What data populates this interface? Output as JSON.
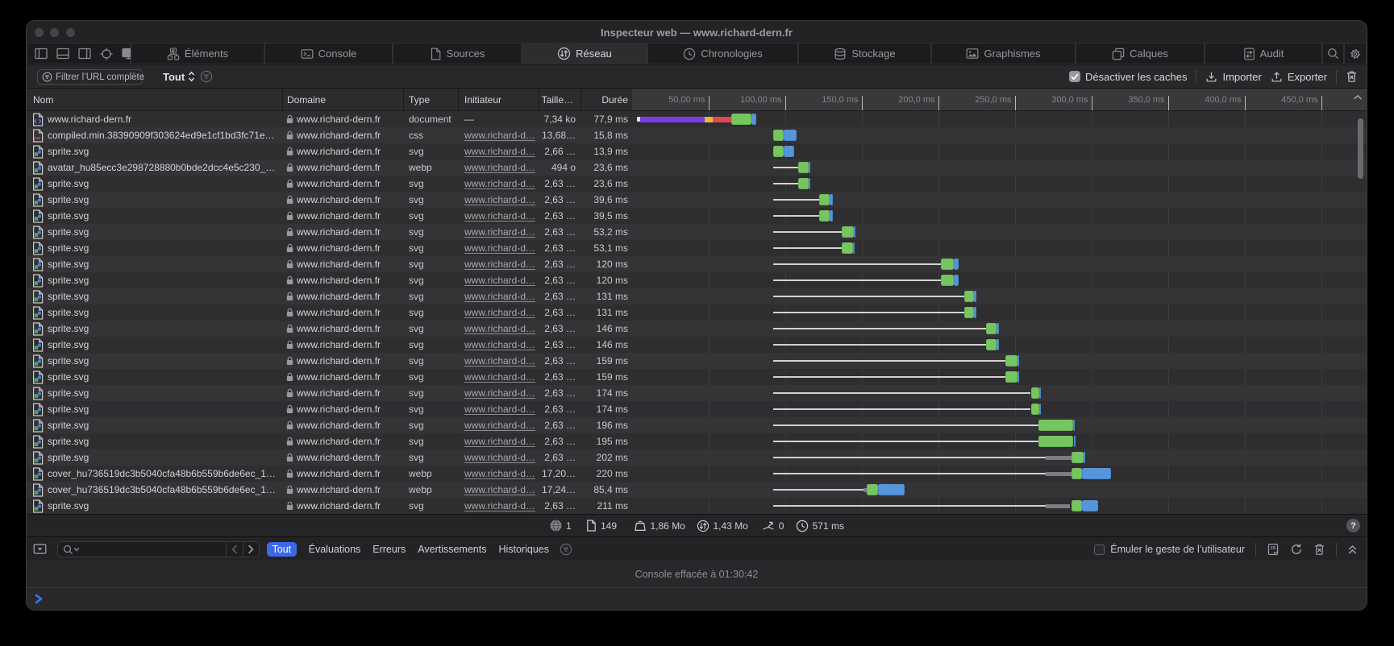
{
  "window": {
    "title": "Inspecteur web — www.richard-dern.fr",
    "traffic_lights": [
      "close",
      "minimize",
      "zoom"
    ]
  },
  "tabbar": {
    "view_mode_icons": [
      "panel-left-icon",
      "panel-bottom-icon",
      "panel-right-icon",
      "element-picker-icon",
      "device-icon"
    ],
    "tabs": [
      {
        "id": "elements",
        "icon": "elements-icon",
        "label": "Éléments",
        "selected": false
      },
      {
        "id": "console",
        "icon": "console-icon",
        "label": "Console",
        "selected": false
      },
      {
        "id": "sources",
        "icon": "sources-icon",
        "label": "Sources",
        "selected": false
      },
      {
        "id": "network",
        "icon": "network-icon",
        "label": "Réseau",
        "selected": true
      },
      {
        "id": "timelines",
        "icon": "clock-icon",
        "label": "Chronologies",
        "selected": false
      },
      {
        "id": "storage",
        "icon": "database-icon",
        "label": "Stockage",
        "selected": false
      },
      {
        "id": "graphics",
        "icon": "image-icon",
        "label": "Graphismes",
        "selected": false
      },
      {
        "id": "layers",
        "icon": "layers-icon",
        "label": "Calques",
        "selected": false
      },
      {
        "id": "audit",
        "icon": "audit-icon",
        "label": "Audit",
        "selected": false
      }
    ],
    "search_icon": "search-icon",
    "settings_icon": "gear-icon"
  },
  "filterbar": {
    "filter_button_label": "Filtrer l’URL complète",
    "scope_select_value": "Tout",
    "scope_filter_icon": "filter-circle-icon",
    "disable_caches_label": "Désactiver les caches",
    "disable_caches_checked": true,
    "import_label": "Importer",
    "export_label": "Exporter",
    "clear_icon": "trash-icon"
  },
  "table": {
    "columns": {
      "name": "Nom",
      "domain": "Domaine",
      "type": "Type",
      "initiator": "Initiateur",
      "size": "Taille…",
      "duration": "Durée"
    },
    "timeline_ticks": [
      "50,00 ms",
      "100,00 ms",
      "150,0 ms",
      "200,0 ms",
      "250,0 ms",
      "300,0 ms",
      "350,0 ms",
      "400,0 ms",
      "450,0 ms"
    ],
    "rows": [
      {
        "name": "www.richard-dern.fr",
        "icon": "document",
        "domain": "www.richard-dern.fr",
        "type": "document",
        "initiator": "—",
        "initiator_link": false,
        "size": "7,34 ko",
        "duration": "77,9 ms",
        "wf": [
          [
            "tick",
            3.4,
            5.6
          ],
          [
            "dns",
            5.6,
            47.6
          ],
          [
            "connect",
            47.6,
            52.9
          ],
          [
            "secure",
            52.9,
            65.0
          ],
          [
            "request",
            65.0,
            78.2
          ],
          [
            "response",
            78.2,
            81.3
          ]
        ]
      },
      {
        "name": "compiled.min.38390909f303624ed9e1cf1bd3fc71e…",
        "icon": "css",
        "domain": "www.richard-dern.fr",
        "type": "css",
        "initiator": "www.richard-d…",
        "initiator_link": true,
        "size": "13,68…",
        "duration": "15,8 ms",
        "wf": [
          [
            "request",
            92.6,
            99.2
          ],
          [
            "response",
            99.2,
            107.6
          ]
        ]
      },
      {
        "name": "sprite.svg",
        "icon": "image",
        "domain": "www.richard-dern.fr",
        "type": "svg",
        "initiator": "www.richard-d…",
        "initiator_link": true,
        "size": "2,66 …",
        "duration": "13,9 ms",
        "wf": [
          [
            "request",
            92.6,
            99.2
          ],
          [
            "response",
            99.2,
            106.0
          ]
        ]
      },
      {
        "name": "avatar_hu85ecc3e298728880b0bde2dcc4e5c230_…",
        "icon": "image",
        "domain": "www.richard-dern.fr",
        "type": "webp",
        "initiator": "www.richard-d…",
        "initiator_link": true,
        "size": "494 o",
        "duration": "23,6 ms",
        "wf": [
          [
            "wait",
            92.4,
            108.9
          ],
          [
            "request",
            108.9,
            115.7
          ],
          [
            "response",
            115.7,
            116.6
          ]
        ]
      },
      {
        "name": "sprite.svg",
        "icon": "image",
        "domain": "www.richard-dern.fr",
        "type": "svg",
        "initiator": "www.richard-d…",
        "initiator_link": true,
        "size": "2,63 …",
        "duration": "23,6 ms",
        "wf": [
          [
            "wait",
            92.4,
            108.7
          ],
          [
            "request",
            108.7,
            115.5
          ],
          [
            "response",
            115.5,
            116.4
          ]
        ]
      },
      {
        "name": "sprite.svg",
        "icon": "image",
        "domain": "www.richard-dern.fr",
        "type": "svg",
        "initiator": "www.richard-d…",
        "initiator_link": true,
        "size": "2,63 …",
        "duration": "39,6 ms",
        "wf": [
          [
            "wait",
            92.4,
            122.2
          ],
          [
            "request",
            122.2,
            129.1
          ],
          [
            "response",
            129.1,
            131.5
          ]
        ]
      },
      {
        "name": "sprite.svg",
        "icon": "image",
        "domain": "www.richard-dern.fr",
        "type": "svg",
        "initiator": "www.richard-d…",
        "initiator_link": true,
        "size": "2,63 …",
        "duration": "39,5 ms",
        "wf": [
          [
            "wait",
            92.4,
            122.2
          ],
          [
            "request",
            122.2,
            129.1
          ],
          [
            "response",
            129.1,
            131.3
          ]
        ]
      },
      {
        "name": "sprite.svg",
        "icon": "image",
        "domain": "www.richard-dern.fr",
        "type": "svg",
        "initiator": "www.richard-d…",
        "initiator_link": true,
        "size": "2,63 …",
        "duration": "53,2 ms",
        "wf": [
          [
            "wait",
            92.4,
            136.9
          ],
          [
            "request",
            136.9,
            144.8
          ],
          [
            "response",
            144.8,
            145.9
          ]
        ]
      },
      {
        "name": "sprite.svg",
        "icon": "image",
        "domain": "www.richard-dern.fr",
        "type": "svg",
        "initiator": "www.richard-d…",
        "initiator_link": true,
        "size": "2,63 …",
        "duration": "53,1 ms",
        "wf": [
          [
            "wait",
            92.4,
            136.9
          ],
          [
            "request",
            136.9,
            144.6
          ],
          [
            "response",
            144.6,
            145.7
          ]
        ]
      },
      {
        "name": "sprite.svg",
        "icon": "image",
        "domain": "www.richard-dern.fr",
        "type": "svg",
        "initiator": "www.richard-d…",
        "initiator_link": true,
        "size": "2,63 …",
        "duration": "120 ms",
        "wf": [
          [
            "wait",
            92.4,
            201.6
          ],
          [
            "request",
            201.6,
            210.3
          ],
          [
            "response",
            210.3,
            213.2
          ]
        ]
      },
      {
        "name": "sprite.svg",
        "icon": "image",
        "domain": "www.richard-dern.fr",
        "type": "svg",
        "initiator": "www.richard-d…",
        "initiator_link": true,
        "size": "2,63 …",
        "duration": "120 ms",
        "wf": [
          [
            "wait",
            92.4,
            201.6
          ],
          [
            "request",
            201.6,
            210.3
          ],
          [
            "response",
            210.3,
            213.2
          ]
        ]
      },
      {
        "name": "sprite.svg",
        "icon": "image",
        "domain": "www.richard-dern.fr",
        "type": "svg",
        "initiator": "www.richard-d…",
        "initiator_link": true,
        "size": "2,63 …",
        "duration": "131 ms",
        "wf": [
          [
            "wait",
            92.4,
            217.0
          ],
          [
            "request",
            217.0,
            223.4
          ],
          [
            "response",
            223.4,
            225.1
          ]
        ]
      },
      {
        "name": "sprite.svg",
        "icon": "image",
        "domain": "www.richard-dern.fr",
        "type": "svg",
        "initiator": "www.richard-d…",
        "initiator_link": true,
        "size": "2,63 …",
        "duration": "131 ms",
        "wf": [
          [
            "wait",
            92.4,
            217.0
          ],
          [
            "request",
            217.0,
            223.4
          ],
          [
            "response",
            223.4,
            225.1
          ]
        ]
      },
      {
        "name": "sprite.svg",
        "icon": "image",
        "domain": "www.richard-dern.fr",
        "type": "svg",
        "initiator": "www.richard-d…",
        "initiator_link": true,
        "size": "2,63 …",
        "duration": "146 ms",
        "wf": [
          [
            "wait",
            92.4,
            231.2
          ],
          [
            "request",
            231.2,
            238.2
          ],
          [
            "response",
            238.2,
            239.6
          ]
        ]
      },
      {
        "name": "sprite.svg",
        "icon": "image",
        "domain": "www.richard-dern.fr",
        "type": "svg",
        "initiator": "www.richard-d…",
        "initiator_link": true,
        "size": "2,63 …",
        "duration": "146 ms",
        "wf": [
          [
            "wait",
            92.4,
            231.2
          ],
          [
            "request",
            231.2,
            238.2
          ],
          [
            "response",
            238.2,
            239.6
          ]
        ]
      },
      {
        "name": "sprite.svg",
        "icon": "image",
        "domain": "www.richard-dern.fr",
        "type": "svg",
        "initiator": "www.richard-d…",
        "initiator_link": true,
        "size": "2,63 …",
        "duration": "159 ms",
        "wf": [
          [
            "wait",
            92.4,
            244.1
          ],
          [
            "request",
            244.1,
            251.8
          ],
          [
            "response",
            251.8,
            252.9
          ]
        ]
      },
      {
        "name": "sprite.svg",
        "icon": "image",
        "domain": "www.richard-dern.fr",
        "type": "svg",
        "initiator": "www.richard-d…",
        "initiator_link": true,
        "size": "2,63 …",
        "duration": "159 ms",
        "wf": [
          [
            "wait",
            92.4,
            244.1
          ],
          [
            "request",
            244.1,
            251.8
          ],
          [
            "response",
            251.8,
            252.9
          ]
        ]
      },
      {
        "name": "sprite.svg",
        "icon": "image",
        "domain": "www.richard-dern.fr",
        "type": "svg",
        "initiator": "www.richard-d…",
        "initiator_link": true,
        "size": "2,63 …",
        "duration": "174 ms",
        "wf": [
          [
            "wait",
            92.4,
            260.5
          ],
          [
            "request",
            260.5,
            265.8
          ],
          [
            "response",
            265.8,
            267.0
          ]
        ]
      },
      {
        "name": "sprite.svg",
        "icon": "image",
        "domain": "www.richard-dern.fr",
        "type": "svg",
        "initiator": "www.richard-d…",
        "initiator_link": true,
        "size": "2,63 …",
        "duration": "174 ms",
        "wf": [
          [
            "wait",
            92.4,
            260.5
          ],
          [
            "request",
            260.5,
            265.8
          ],
          [
            "response",
            265.8,
            267.0
          ]
        ]
      },
      {
        "name": "sprite.svg",
        "icon": "image",
        "domain": "www.richard-dern.fr",
        "type": "svg",
        "initiator": "www.richard-d…",
        "initiator_link": true,
        "size": "2,63 …",
        "duration": "196 ms",
        "wf": [
          [
            "wait",
            92.4,
            265.4
          ],
          [
            "request",
            265.4,
            288.2
          ],
          [
            "response",
            288.2,
            289.3
          ]
        ]
      },
      {
        "name": "sprite.svg",
        "icon": "image",
        "domain": "www.richard-dern.fr",
        "type": "svg",
        "initiator": "www.richard-d…",
        "initiator_link": true,
        "size": "2,63 …",
        "duration": "195 ms",
        "wf": [
          [
            "wait",
            92.4,
            265.4
          ],
          [
            "request",
            265.4,
            288.4
          ],
          [
            "response",
            288.4,
            289.5
          ]
        ]
      },
      {
        "name": "sprite.svg",
        "icon": "image",
        "domain": "www.richard-dern.fr",
        "type": "svg",
        "initiator": "www.richard-d…",
        "initiator_link": true,
        "size": "2,63 …",
        "duration": "202 ms",
        "wf": [
          [
            "wait",
            92.4,
            270.3
          ],
          [
            "stall",
            270.3,
            287.2
          ],
          [
            "request",
            287.2,
            295.2
          ],
          [
            "response",
            295.2,
            296.2
          ]
        ]
      },
      {
        "name": "cover_hu736519dc3b5040cfa48b6b559b6de6ec_1…",
        "icon": "image",
        "domain": "www.richard-dern.fr",
        "type": "webp",
        "initiator": "www.richard-d…",
        "initiator_link": true,
        "size": "17,20…",
        "duration": "220 ms",
        "wf": [
          [
            "wait",
            92.4,
            270.3
          ],
          [
            "stall",
            270.3,
            287.1
          ],
          [
            "request",
            287.1,
            294.1
          ],
          [
            "response",
            294.1,
            312.7
          ]
        ]
      },
      {
        "name": "cover_hu736519dc3b5040cfa48b6b559b6de6ec_1…",
        "icon": "image",
        "domain": "www.richard-dern.fr",
        "type": "webp",
        "initiator": "www.richard-d…",
        "initiator_link": true,
        "size": "17,24…",
        "duration": "85,4 ms",
        "wf": [
          [
            "wait",
            92.4,
            151.1
          ],
          [
            "stall",
            151.1,
            153.5
          ],
          [
            "request",
            153.5,
            160.6
          ],
          [
            "response",
            160.6,
            178.2
          ]
        ]
      },
      {
        "name": "sprite.svg",
        "icon": "image",
        "domain": "www.richard-dern.fr",
        "type": "svg",
        "initiator": "www.richard-d…",
        "initiator_link": true,
        "size": "2,63 …",
        "duration": "211 ms",
        "wf": [
          [
            "wait",
            92.4,
            270.3
          ],
          [
            "stall",
            270.3,
            286.3
          ],
          [
            "request",
            287.2,
            294.1
          ],
          [
            "response",
            294.1,
            304.4
          ]
        ]
      }
    ]
  },
  "statusbar": {
    "items": [
      {
        "icon": "globe-icon",
        "value": "1"
      },
      {
        "icon": "page-icon",
        "value": "149"
      },
      {
        "icon": "weight-icon",
        "value": "1,86 Mo"
      },
      {
        "icon": "transfer-icon",
        "value": "1,43 Mo"
      },
      {
        "icon": "send-icon",
        "value": "0"
      },
      {
        "icon": "clock-icon",
        "value": "571 ms"
      }
    ],
    "help_label": "?"
  },
  "console": {
    "picker_icon": "console-picker-icon",
    "search_icon": "search-icon",
    "search_value": "",
    "nav_prev_icon": "chevron-left-icon",
    "nav_next_icon": "chevron-right-icon",
    "filters": [
      {
        "label": "Tout",
        "selected": true
      },
      {
        "label": "Évaluations",
        "selected": false
      },
      {
        "label": "Erreurs",
        "selected": false
      },
      {
        "label": "Avertissements",
        "selected": false
      },
      {
        "label": "Historiques",
        "selected": false
      }
    ],
    "filter_icon": "filter-circle-icon",
    "emulate_label": "Émuler le geste de l’utilisateur",
    "emulate_checked": false,
    "action_icons": [
      "js-file-icon",
      "refresh-icon",
      "trash-icon",
      "double-chevron-up-icon"
    ],
    "message": "Console effacée à 01:30:42",
    "prompt_icon": "prompt-chevron-icon"
  }
}
